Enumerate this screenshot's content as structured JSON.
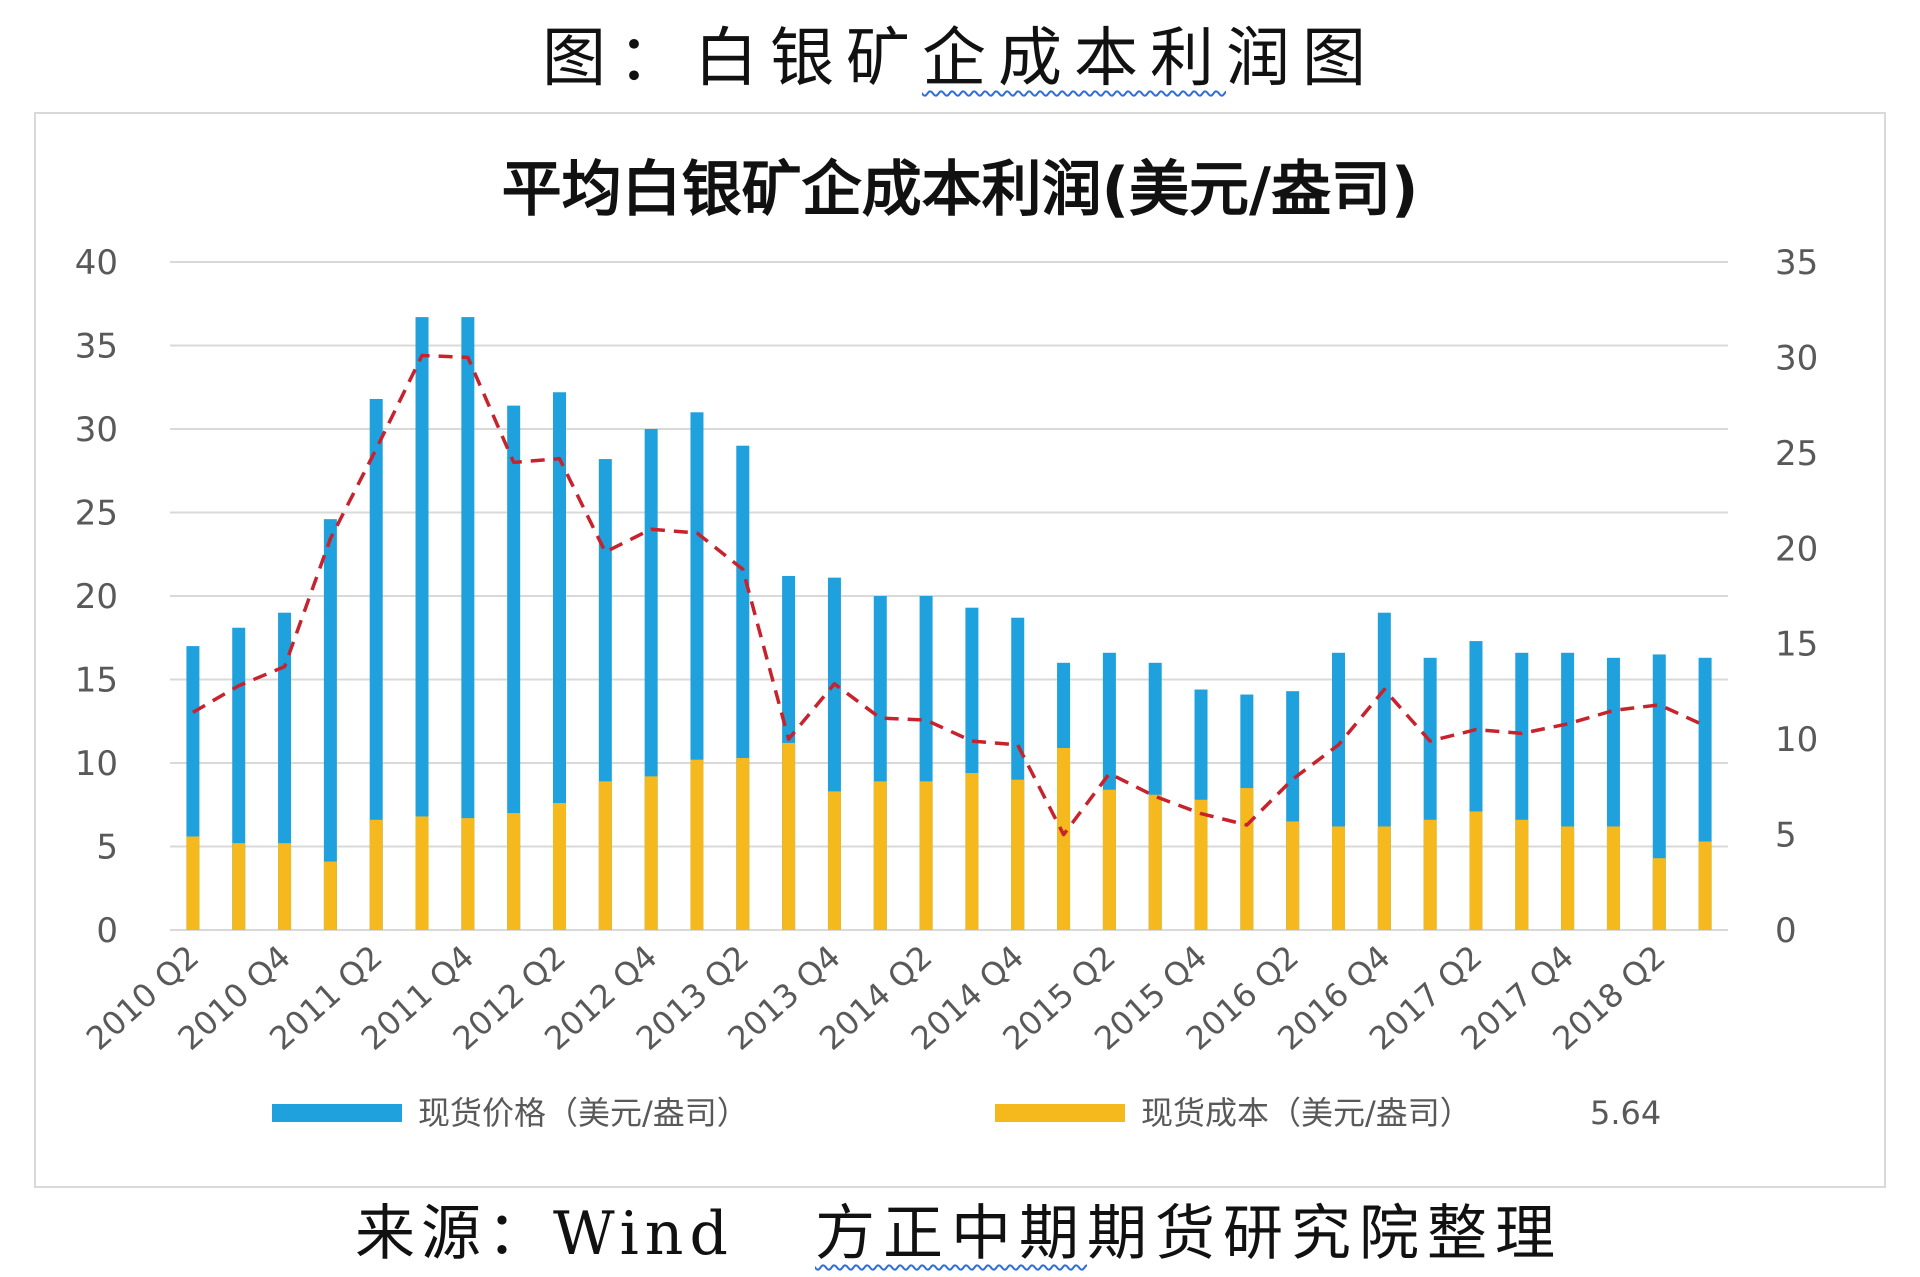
{
  "figure_caption": "图：白银矿企成本利润图",
  "source_label": "来源：Wind",
  "source_org": "方正中期期货研究院整理",
  "colors": {
    "price": "#1FA1DD",
    "cost": "#F5B91D",
    "profit_line": "#C8232C",
    "grid": "#D9D9D9",
    "axis_text": "#595959"
  },
  "chart_data": {
    "type": "bar",
    "title": "平均白银矿企成本利润(美元/盎司)",
    "categories": [
      "2010 Q2",
      "2010 Q3",
      "2010 Q4",
      "2011 Q1",
      "2011 Q2",
      "2011 Q3",
      "2011 Q4",
      "2012 Q1",
      "2012 Q2",
      "2012 Q3",
      "2012 Q4",
      "2013 Q1",
      "2013 Q2",
      "2013 Q3",
      "2013 Q4",
      "2014 Q1",
      "2014 Q2",
      "2014 Q3",
      "2014 Q4",
      "2015 Q1",
      "2015 Q2",
      "2015 Q3",
      "2015 Q4",
      "2016 Q1",
      "2016 Q2",
      "2016 Q3",
      "2016 Q4",
      "2017 Q1",
      "2017 Q2",
      "2017 Q3",
      "2017 Q4",
      "2018 Q1",
      "2018 Q2",
      "2018 Q3"
    ],
    "x_tick_labels": [
      "2010 Q2",
      "2010 Q4",
      "2011 Q2",
      "2011 Q4",
      "2012 Q2",
      "2012 Q4",
      "2013 Q2",
      "2013 Q4",
      "2014 Q2",
      "2014 Q4",
      "2015 Q2",
      "2015 Q4",
      "2016 Q2",
      "2016 Q4",
      "2017 Q2",
      "2017 Q4",
      "2018 Q2"
    ],
    "ylim_left": [
      0,
      40
    ],
    "yticks_left": [
      "0",
      "5",
      "10",
      "15",
      "20",
      "25",
      "30",
      "35",
      "40"
    ],
    "ylim_right": [
      0,
      35
    ],
    "yticks_right": [
      "0",
      "5",
      "10",
      "15",
      "20",
      "25",
      "30",
      "35"
    ],
    "grid": true,
    "legend_position": "bottom",
    "annotation": "5.64",
    "series": [
      {
        "name": "现货价格（美元/盎司）",
        "type": "bar",
        "axis": "left",
        "values": [
          17.0,
          18.1,
          19.0,
          24.6,
          31.8,
          36.7,
          36.7,
          31.4,
          32.2,
          28.2,
          30.0,
          31.0,
          29.0,
          21.2,
          21.1,
          20.0,
          20.0,
          19.3,
          18.7,
          16.0,
          16.6,
          16.0,
          14.4,
          14.1,
          14.3,
          16.6,
          19.0,
          16.3,
          17.3,
          16.6,
          16.6,
          16.3,
          16.5,
          16.3
        ]
      },
      {
        "name": "现货成本（美元/盎司）",
        "type": "bar",
        "axis": "left",
        "values": [
          5.6,
          5.2,
          5.2,
          4.1,
          6.6,
          6.8,
          6.7,
          7.0,
          7.6,
          8.9,
          9.2,
          10.2,
          10.3,
          11.2,
          8.3,
          8.9,
          8.9,
          9.4,
          9.0,
          10.9,
          8.4,
          8.1,
          7.8,
          8.5,
          6.5,
          6.2,
          6.2,
          6.6,
          7.1,
          6.6,
          6.2,
          6.2,
          4.3,
          5.3
        ]
      },
      {
        "type": "line",
        "axis": "right",
        "style": "dashed",
        "values": [
          11.4,
          12.8,
          13.8,
          20.5,
          25.2,
          30.1,
          30.0,
          24.5,
          24.7,
          19.8,
          21.0,
          20.8,
          18.9,
          10.0,
          12.9,
          11.1,
          11.0,
          9.9,
          9.7,
          5.0,
          8.2,
          7.0,
          6.1,
          5.5,
          7.9,
          9.7,
          12.6,
          9.9,
          10.5,
          10.3,
          10.8,
          11.5,
          11.8,
          10.7
        ]
      }
    ]
  }
}
